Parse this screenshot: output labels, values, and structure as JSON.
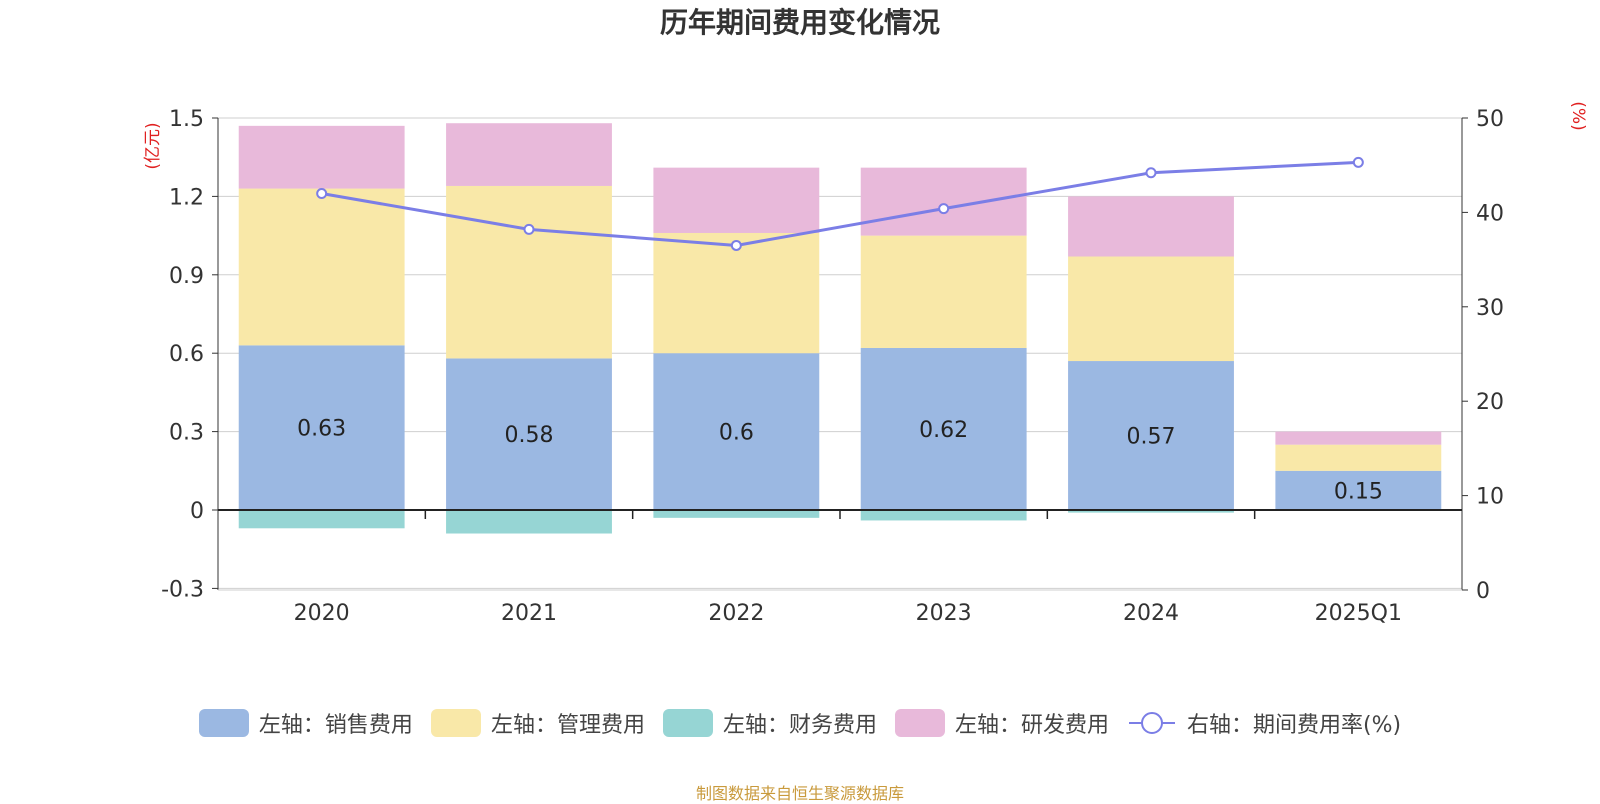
{
  "chart_data": {
    "type": "bar",
    "title": "历年期间费用变化情况",
    "categories": [
      "2020",
      "2021",
      "2022",
      "2023",
      "2024",
      "2025Q1"
    ],
    "left_axis": {
      "label": "(亿元)",
      "ylim": [
        -0.3,
        1.5
      ],
      "ticks": [
        "-0.3",
        "0",
        "0.3",
        "0.6",
        "0.9",
        "1.2",
        "1.5"
      ]
    },
    "right_axis": {
      "label": "(%)",
      "ylim": [
        0,
        50
      ],
      "ticks": [
        "0",
        "10",
        "20",
        "30",
        "40",
        "50"
      ]
    },
    "series": [
      {
        "name": "左轴：销售费用",
        "type": "bar",
        "axis": "left",
        "color": "#9bb8e2",
        "values": [
          0.63,
          0.58,
          0.6,
          0.62,
          0.57,
          0.15
        ],
        "labels": [
          "0.63",
          "0.58",
          "0.6",
          "0.62",
          "0.57",
          "0.15"
        ]
      },
      {
        "name": "左轴：管理费用",
        "type": "bar",
        "axis": "left",
        "color": "#f9e8a8",
        "values": [
          0.6,
          0.66,
          0.46,
          0.43,
          0.4,
          0.1
        ]
      },
      {
        "name": "左轴：财务费用",
        "type": "bar",
        "axis": "left",
        "color": "#96d5d4",
        "values": [
          -0.07,
          -0.09,
          -0.03,
          -0.04,
          -0.01,
          0.0
        ]
      },
      {
        "name": "左轴：研发费用",
        "type": "bar",
        "axis": "left",
        "color": "#e8b9da",
        "values": [
          0.24,
          0.24,
          0.25,
          0.26,
          0.23,
          0.05
        ]
      },
      {
        "name": "右轴：期间费用率(%)",
        "type": "line",
        "axis": "right",
        "color": "#7b7ee6",
        "values": [
          42.0,
          38.2,
          36.5,
          40.4,
          44.2,
          45.3
        ]
      }
    ],
    "grid": true,
    "legend_position": "bottom"
  },
  "source_note": "制图数据来自恒生聚源数据库"
}
